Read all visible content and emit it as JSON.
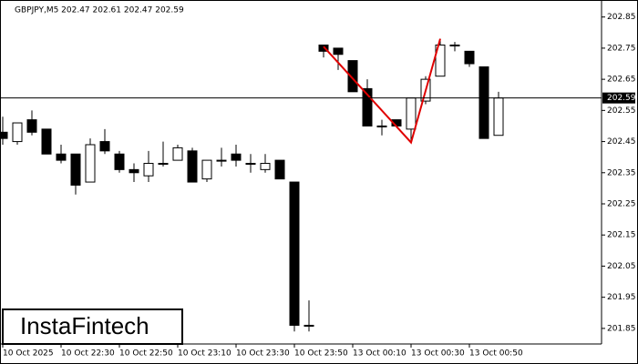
{
  "chart_data": {
    "type": "candlestick",
    "title": "GBPJPY,M5  202.47 202.61 202.47 202.59",
    "watermark": "InstaFintech",
    "categories": [
      "10 Oct 2025",
      null,
      null,
      null,
      "10 Oct 22:30",
      null,
      null,
      null,
      "10 Oct 22:50",
      null,
      null,
      null,
      "10 Oct 23:10",
      null,
      null,
      null,
      "10 Oct 23:30",
      null,
      null,
      null,
      "10 Oct 23:50",
      null,
      null,
      null,
      "13 Oct 00:10",
      null,
      null,
      null,
      "13 Oct 00:30",
      null,
      null,
      null,
      "13 Oct 00:50",
      null,
      null
    ],
    "open": [
      202.48,
      202.45,
      202.52,
      202.49,
      202.41,
      202.41,
      202.32,
      202.45,
      202.41,
      202.36,
      202.34,
      202.38,
      202.39,
      202.42,
      202.33,
      202.39,
      202.41,
      202.38,
      202.36,
      202.39,
      202.32,
      201.86,
      202.76,
      202.75,
      202.71,
      202.62,
      202.5,
      202.52,
      202.49,
      202.58,
      202.66,
      202.76,
      202.74,
      202.69,
      202.47
    ],
    "high": [
      202.53,
      202.51,
      202.55,
      202.49,
      202.44,
      202.41,
      202.46,
      202.49,
      202.42,
      202.38,
      202.42,
      202.45,
      202.44,
      202.43,
      202.39,
      202.43,
      202.44,
      202.41,
      202.41,
      202.39,
      202.32,
      201.94,
      202.76,
      202.75,
      202.71,
      202.65,
      202.52,
      202.52,
      202.59,
      202.66,
      202.78,
      202.77,
      202.74,
      202.69,
      202.61
    ],
    "low": [
      202.44,
      202.44,
      202.47,
      202.41,
      202.38,
      202.28,
      202.32,
      202.41,
      202.35,
      202.32,
      202.32,
      202.37,
      202.39,
      202.32,
      202.32,
      202.37,
      202.37,
      202.35,
      202.35,
      202.33,
      201.84,
      201.84,
      202.72,
      202.68,
      202.61,
      202.5,
      202.47,
      202.5,
      202.45,
      202.57,
      202.66,
      202.74,
      202.69,
      202.46,
      202.47
    ],
    "close": [
      202.46,
      202.51,
      202.48,
      202.41,
      202.39,
      202.31,
      202.44,
      202.42,
      202.36,
      202.35,
      202.38,
      202.38,
      202.43,
      202.32,
      202.39,
      202.39,
      202.39,
      202.38,
      202.38,
      202.33,
      201.86,
      201.86,
      202.74,
      202.73,
      202.61,
      202.5,
      202.5,
      202.5,
      202.59,
      202.65,
      202.76,
      202.76,
      202.7,
      202.46,
      202.59
    ],
    "up_color": "#ffffff",
    "down_color": "#000000",
    "current_price": 202.59,
    "current_price_color": "#000000",
    "pattern_line": {
      "color": "#e00000",
      "indices": [
        22,
        28,
        30
      ],
      "values": [
        202.755,
        202.447,
        202.78
      ]
    },
    "ylim": [
      201.8,
      202.89
    ],
    "yticks": [
      202.85,
      202.75,
      202.65,
      202.55,
      202.45,
      202.35,
      202.25,
      202.15,
      202.05,
      201.95,
      201.85
    ]
  }
}
